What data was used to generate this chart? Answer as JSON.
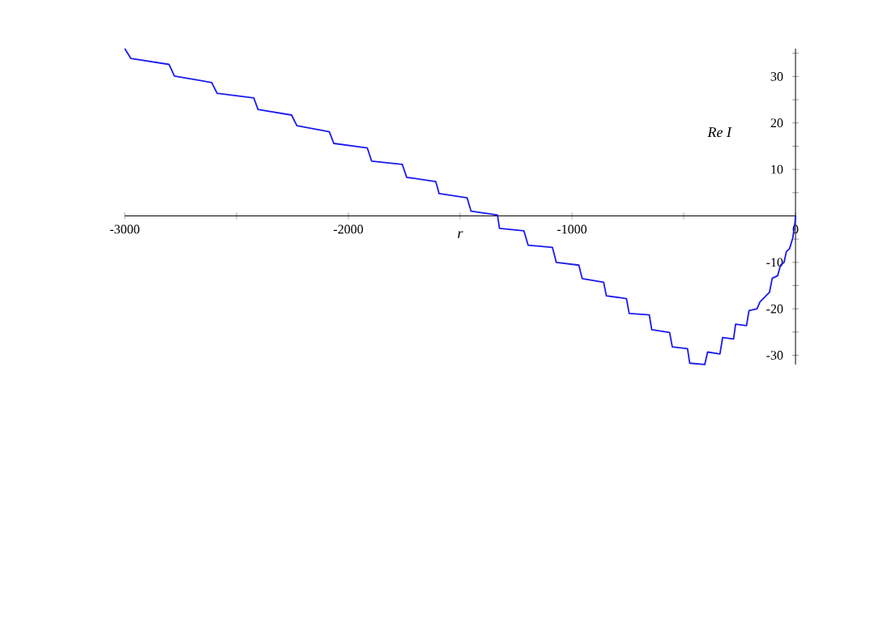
{
  "chart_data": {
    "type": "line",
    "xlabel": "r",
    "ylabel": "Re I",
    "xlim": [
      -3000,
      0
    ],
    "ylim": [
      -32,
      36
    ],
    "xticks": [
      -3000,
      {
        "value": -2500,
        "label": null
      },
      -2000,
      {
        "value": -1500,
        "label": null
      },
      -1000,
      {
        "value": -500,
        "label": null
      },
      0
    ],
    "yticks": [
      -30,
      {
        "value": -25,
        "label": null
      },
      -20,
      {
        "value": -15,
        "label": null
      },
      -10,
      {
        "value": -5,
        "label": null
      },
      10,
      {
        "value": 5,
        "label": null
      },
      {
        "value": 15,
        "label": null
      },
      20,
      {
        "value": 25,
        "label": null
      },
      30,
      {
        "value": 35,
        "label": null
      }
    ],
    "grid": false,
    "series": [
      {
        "color": "#1a1aee",
        "x": [
          -3000,
          -2973,
          -2802,
          -2778,
          -2611,
          -2587,
          -2423,
          -2404,
          -2254,
          -2230,
          -2085,
          -2065,
          -1915,
          -1896,
          -1759,
          -1739,
          -1609,
          -1594,
          -1469,
          -1451,
          -1333,
          -1324,
          -1215,
          -1196,
          -1087,
          -1070,
          -969,
          -954,
          -858,
          -846,
          -756,
          -744,
          -654,
          -643,
          -563,
          -551,
          -483,
          -473,
          -406,
          -393,
          -338,
          -326,
          -277,
          -268,
          -219,
          -208,
          -172,
          -159,
          -116,
          -104,
          -80,
          -67,
          -51,
          -41,
          -27,
          -12,
          -2,
          0
        ],
        "values": [
          36,
          33.9,
          32.6,
          30.1,
          28.7,
          26.4,
          25.4,
          22.9,
          21.7,
          19.4,
          18.1,
          15.6,
          14.6,
          11.8,
          11.1,
          8.3,
          7.4,
          4.8,
          3.9,
          1.0,
          0.2,
          -2.7,
          -3.2,
          -6.3,
          -6.8,
          -10,
          -10.6,
          -13.5,
          -14.3,
          -17.2,
          -17.8,
          -21,
          -21.3,
          -24.5,
          -25.1,
          -28.2,
          -28.6,
          -31.7,
          -32,
          -29.3,
          -29.7,
          -26.2,
          -26.5,
          -23.3,
          -23.6,
          -20.4,
          -20,
          -18.5,
          -16.4,
          -13.4,
          -12.9,
          -10.6,
          -10,
          -7.7,
          -7.1,
          -4.7,
          -1.3,
          0
        ]
      }
    ]
  }
}
